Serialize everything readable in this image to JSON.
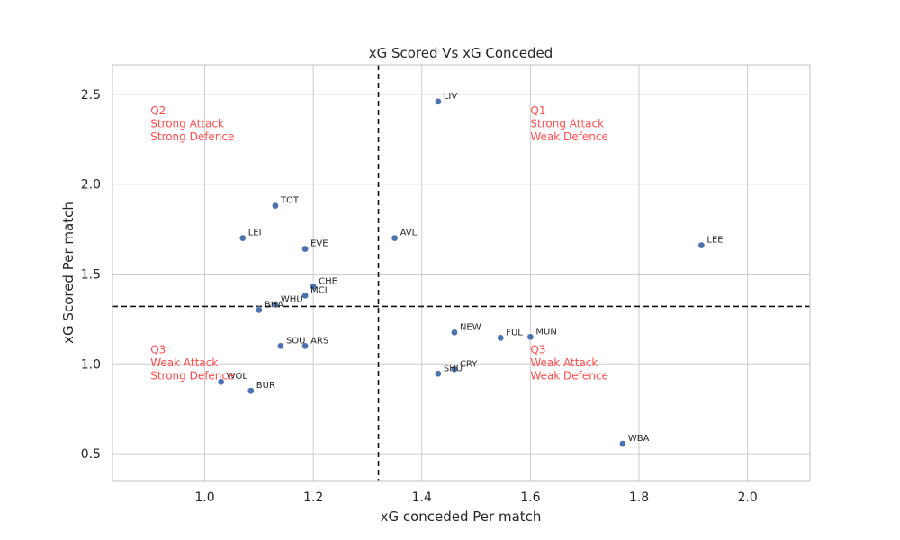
{
  "chart_data": {
    "type": "scatter",
    "title": "xG Scored Vs xG Conceded",
    "xlabel": "xG conceded Per match",
    "ylabel": "xG Scored Per match",
    "xlim": [
      0.83,
      2.115
    ],
    "ylim": [
      0.35,
      2.665
    ],
    "xticks": [
      1.0,
      1.2,
      1.4,
      1.6,
      1.8,
      2.0
    ],
    "xtick_labels": [
      "1.0",
      "1.2",
      "1.4",
      "1.6",
      "1.8",
      "2.0"
    ],
    "yticks": [
      0.5,
      1.0,
      1.5,
      2.0,
      2.5
    ],
    "ytick_labels": [
      "0.5",
      "1.0",
      "1.5",
      "2.0",
      "2.5"
    ],
    "grid": true,
    "reference_lines": {
      "x": 1.32,
      "y": 1.32
    },
    "points": [
      {
        "label": "LIV",
        "x": 1.43,
        "y": 2.46
      },
      {
        "label": "TOT",
        "x": 1.13,
        "y": 1.88
      },
      {
        "label": "LEI",
        "x": 1.07,
        "y": 1.7
      },
      {
        "label": "EVE",
        "x": 1.185,
        "y": 1.64
      },
      {
        "label": "AVL",
        "x": 1.35,
        "y": 1.7
      },
      {
        "label": "LEE",
        "x": 1.915,
        "y": 1.66
      },
      {
        "label": "CHE",
        "x": 1.2,
        "y": 1.43
      },
      {
        "label": "MCI",
        "x": 1.185,
        "y": 1.38
      },
      {
        "label": "WHU",
        "x": 1.13,
        "y": 1.33
      },
      {
        "label": "BHA",
        "x": 1.1,
        "y": 1.3
      },
      {
        "label": "NEW",
        "x": 1.46,
        "y": 1.175
      },
      {
        "label": "FUL",
        "x": 1.545,
        "y": 1.145
      },
      {
        "label": "MUN",
        "x": 1.6,
        "y": 1.15
      },
      {
        "label": "SOU",
        "x": 1.14,
        "y": 1.1
      },
      {
        "label": "ARS",
        "x": 1.185,
        "y": 1.1
      },
      {
        "label": "SHU",
        "x": 1.43,
        "y": 0.945
      },
      {
        "label": "CRY",
        "x": 1.46,
        "y": 0.97
      },
      {
        "label": "WOL",
        "x": 1.03,
        "y": 0.9
      },
      {
        "label": "BUR",
        "x": 1.085,
        "y": 0.85
      },
      {
        "label": "WBA",
        "x": 1.77,
        "y": 0.555
      }
    ],
    "annotations": [
      {
        "lines": [
          "Q2",
          "Strong Attack",
          "Strong Defence"
        ],
        "x": 0.9,
        "y": 2.39
      },
      {
        "lines": [
          "Q1",
          "Strong Attack",
          "Weak Defence"
        ],
        "x": 1.6,
        "y": 2.39
      },
      {
        "lines": [
          "Q3",
          "Weak Attack",
          "Strong Defence"
        ],
        "x": 0.9,
        "y": 1.06
      },
      {
        "lines": [
          "Q3",
          "Weak Attack",
          "Weak Defence"
        ],
        "x": 1.6,
        "y": 1.06
      }
    ],
    "colors": {
      "points": "#4c72b0",
      "annotations": "#ff4d4d",
      "grid": "#cccccc",
      "reference": "#111111"
    }
  }
}
